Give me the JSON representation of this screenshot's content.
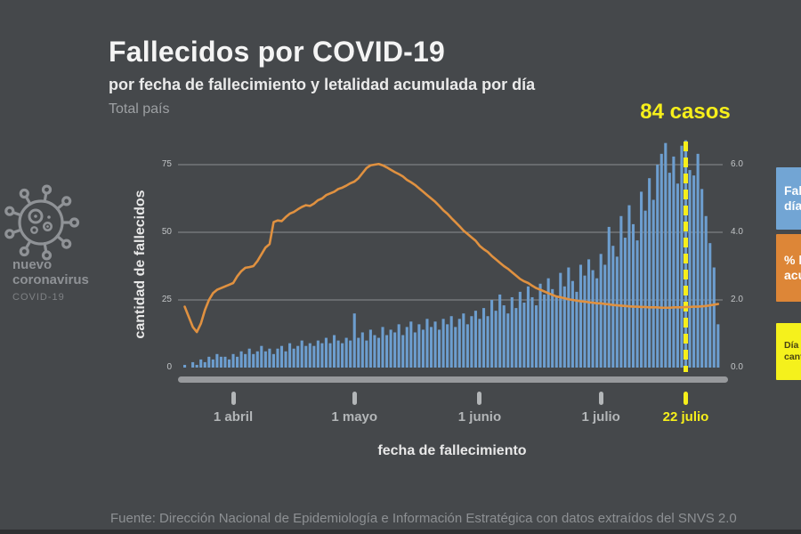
{
  "header": {
    "title": "Fallecidos por COVID-19",
    "subtitle": "por fecha de fallecimiento y letalidad acumulada por día",
    "scope": "Total país"
  },
  "badge": {
    "line1": "nuevo",
    "line2": "coronavirus",
    "sub": "COVID-19"
  },
  "annotation": {
    "peak_label": "84 casos"
  },
  "chart_data": {
    "type": "bar",
    "title": "Fallecidos por COVID-19 por fecha de fallecimiento y letalidad acumulada por día",
    "xlabel": "fecha de fallecimiento",
    "x_start_date": "20 marzo",
    "series": [
      {
        "name": "Fallecidos por día",
        "type": "bar",
        "axis": "left",
        "color": "#6d9ecf",
        "values": [
          1,
          0,
          2,
          1,
          3,
          2,
          4,
          3,
          5,
          4,
          4,
          3,
          5,
          4,
          6,
          5,
          7,
          5,
          6,
          8,
          6,
          7,
          5,
          7,
          8,
          6,
          9,
          7,
          8,
          10,
          8,
          9,
          8,
          10,
          9,
          11,
          9,
          12,
          10,
          9,
          11,
          10,
          20,
          11,
          13,
          10,
          14,
          12,
          11,
          15,
          12,
          14,
          13,
          16,
          12,
          15,
          17,
          13,
          16,
          14,
          18,
          15,
          17,
          14,
          18,
          16,
          19,
          15,
          18,
          20,
          16,
          19,
          21,
          18,
          22,
          19,
          25,
          21,
          27,
          23,
          20,
          26,
          22,
          28,
          24,
          30,
          26,
          23,
          31,
          27,
          33,
          29,
          26,
          35,
          30,
          37,
          32,
          28,
          38,
          34,
          40,
          36,
          33,
          42,
          38,
          52,
          45,
          41,
          56,
          48,
          60,
          53,
          47,
          65,
          58,
          70,
          62,
          75,
          79,
          83,
          72,
          78,
          68,
          82,
          84,
          73,
          71,
          79,
          66,
          56,
          46,
          37,
          16
        ]
      },
      {
        "name": "% letalidad acumulada",
        "type": "line",
        "axis": "right",
        "color": "#e09140",
        "values": [
          1.8,
          1.5,
          1.2,
          1.05,
          1.3,
          1.7,
          2.0,
          2.2,
          2.3,
          2.35,
          2.4,
          2.45,
          2.5,
          2.7,
          2.85,
          2.95,
          2.97,
          3.0,
          3.15,
          3.35,
          3.55,
          3.65,
          4.3,
          4.35,
          4.33,
          4.45,
          4.55,
          4.6,
          4.68,
          4.75,
          4.8,
          4.78,
          4.85,
          4.95,
          5.0,
          5.1,
          5.15,
          5.2,
          5.28,
          5.32,
          5.38,
          5.45,
          5.5,
          5.6,
          5.75,
          5.9,
          5.98,
          6.0,
          6.02,
          5.98,
          5.92,
          5.85,
          5.78,
          5.72,
          5.65,
          5.55,
          5.48,
          5.4,
          5.3,
          5.2,
          5.1,
          5.0,
          4.9,
          4.78,
          4.65,
          4.55,
          4.42,
          4.3,
          4.18,
          4.05,
          3.95,
          3.85,
          3.75,
          3.6,
          3.5,
          3.42,
          3.3,
          3.2,
          3.1,
          3.0,
          2.92,
          2.82,
          2.72,
          2.62,
          2.55,
          2.5,
          2.42,
          2.35,
          2.3,
          2.25,
          2.2,
          2.15,
          2.1,
          2.08,
          2.05,
          2.02,
          2.0,
          1.98,
          1.96,
          1.95,
          1.93,
          1.92,
          1.9,
          1.9,
          1.88,
          1.87,
          1.85,
          1.84,
          1.83,
          1.82,
          1.81,
          1.8,
          1.8,
          1.79,
          1.79,
          1.78,
          1.78,
          1.78,
          1.77,
          1.77,
          1.77,
          1.78,
          1.78,
          1.78,
          1.79,
          1.79,
          1.8,
          1.8,
          1.81,
          1.82,
          1.84,
          1.86,
          1.88
        ]
      }
    ],
    "highlight_index": 124,
    "highlight_value": 84,
    "x_ticks": [
      {
        "label": "1 abril",
        "index": 12,
        "highlight": false
      },
      {
        "label": "1 mayo",
        "index": 42,
        "highlight": false
      },
      {
        "label": "1 junio",
        "index": 73,
        "highlight": false
      },
      {
        "label": "1 julio",
        "index": 103,
        "highlight": false
      },
      {
        "label": "22 julio",
        "index": 124,
        "highlight": true
      }
    ],
    "left_axis": {
      "label": "cantidad de fallecidos",
      "ticks": [
        "0",
        "25",
        "50",
        "75"
      ],
      "ylim": [
        0,
        86
      ]
    },
    "right_axis": {
      "ticks": [
        "0.0",
        "2.0",
        "4.0",
        "6.0"
      ],
      "ylim": [
        0.0,
        6.9
      ]
    },
    "grid": true,
    "legend_position": "right"
  },
  "legend": [
    {
      "label": "Fallecidos por día",
      "color": "#72a5d4",
      "text_color": "#ffffff"
    },
    {
      "label": "% letalidad acumulada",
      "color": "#dd8637",
      "text_color": "#ffffff"
    },
    {
      "label": "Día con mayor cantidad de casos",
      "color": "#f5f11c",
      "text_color": "#4a4412"
    }
  ],
  "colors": {
    "background": "#45484b",
    "bar": "#6d9ecf",
    "line": "#e09140",
    "highlight": "#f6ef1b",
    "gridline": "#8b8e90",
    "axis_bar": "#97999c"
  },
  "footer": {
    "source": "Fuente: Dirección Nacional de Epidemiología e Información Estratégica con datos extraídos del SNVS 2.0"
  }
}
